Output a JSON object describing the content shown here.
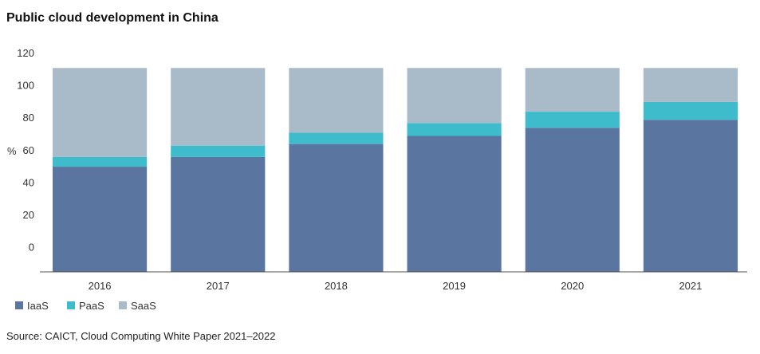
{
  "title": "Public cloud development in China",
  "source": "Source: CAICT, Cloud Computing White Paper 2021–2022",
  "chart_data": {
    "type": "bar",
    "stacked": true,
    "ylabel": "%",
    "ylim": [
      -15,
      120
    ],
    "yticks": [
      0,
      20,
      40,
      60,
      80,
      100,
      120
    ],
    "categories": [
      "2016",
      "2017",
      "2018",
      "2019",
      "2020",
      "2021"
    ],
    "series": [
      {
        "name": "IaaS",
        "color": "#5a76a0",
        "values": [
          50,
          56,
          64,
          69,
          74,
          79
        ]
      },
      {
        "name": "PaaS",
        "color": "#3fbccc",
        "values": [
          6,
          7,
          7,
          8,
          10,
          11
        ]
      },
      {
        "name": "SaaS",
        "color": "#a9bac8",
        "values": [
          55,
          48,
          40,
          34,
          27,
          21
        ]
      }
    ],
    "grid": false,
    "legend_position": "bottom-left"
  }
}
